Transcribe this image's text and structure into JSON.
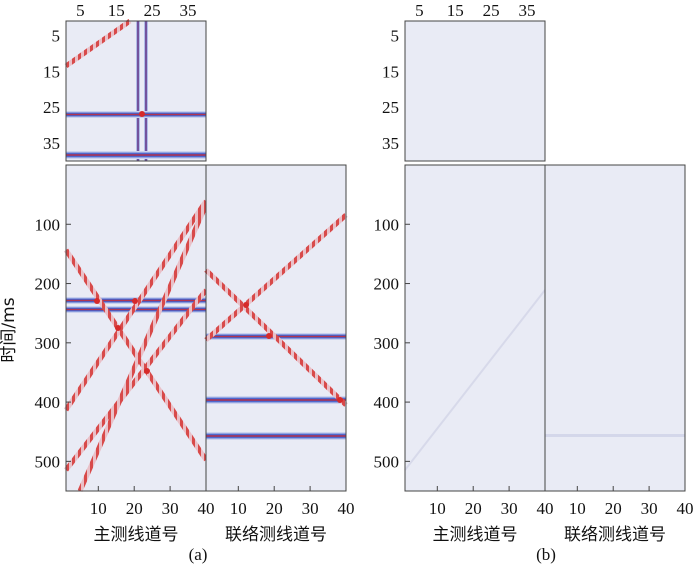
{
  "chart_data": [
    {
      "type": "heatmap",
      "panel": "a",
      "panel_label": "(a)",
      "ylabel": "时间/ms",
      "time_ticks": [
        "100",
        "200",
        "300",
        "400",
        "500"
      ],
      "time_tick_values": [
        100,
        200,
        300,
        400,
        500
      ],
      "time_range": [
        0,
        550
      ],
      "top_block": {
        "x_ticks": [
          "5",
          "15",
          "25",
          "35"
        ],
        "x_tick_values": [
          5,
          15,
          25,
          35
        ],
        "y_ticks": [
          "5",
          "15",
          "25",
          "35"
        ],
        "y_tick_values": [
          5,
          15,
          25,
          35
        ],
        "range": [
          1,
          40
        ]
      },
      "main": {
        "xlabel": "主测线道号",
        "x_ticks": [
          "10",
          "20",
          "30",
          "40"
        ],
        "x_tick_values": [
          10,
          20,
          30,
          40
        ],
        "range": [
          1,
          40
        ]
      },
      "cross": {
        "xlabel": "联络测线道号",
        "x_ticks": [
          "10",
          "20",
          "30",
          "40"
        ],
        "x_tick_values": [
          10,
          20,
          30,
          40
        ],
        "range": [
          1,
          40
        ]
      },
      "colors": {
        "background": "#e9ebf5",
        "positive": "#d62a2a",
        "negative": "#3a56c8"
      }
    },
    {
      "type": "heatmap",
      "panel": "b",
      "panel_label": "(b)",
      "time_ticks": [
        "100",
        "200",
        "300",
        "400",
        "500"
      ],
      "time_tick_values": [
        100,
        200,
        300,
        400,
        500
      ],
      "time_range": [
        0,
        550
      ],
      "top_block": {
        "x_ticks": [
          "5",
          "15",
          "25",
          "35"
        ],
        "x_tick_values": [
          5,
          15,
          25,
          35
        ],
        "y_ticks": [
          "5",
          "15",
          "25",
          "35"
        ],
        "y_tick_values": [
          5,
          15,
          25,
          35
        ],
        "range": [
          1,
          40
        ]
      },
      "main": {
        "xlabel": "主测线道号",
        "x_ticks": [
          "10",
          "20",
          "30",
          "40"
        ],
        "x_tick_values": [
          10,
          20,
          30,
          40
        ],
        "range": [
          1,
          40
        ]
      },
      "cross": {
        "xlabel": "联络测线道号",
        "x_ticks": [
          "10",
          "20",
          "30",
          "40"
        ],
        "x_tick_values": [
          10,
          20,
          30,
          40
        ],
        "range": [
          1,
          40
        ]
      },
      "colors": {
        "background": "#e9ebf5",
        "positive": "#d62a2a",
        "negative": "#3a56c8"
      }
    }
  ]
}
